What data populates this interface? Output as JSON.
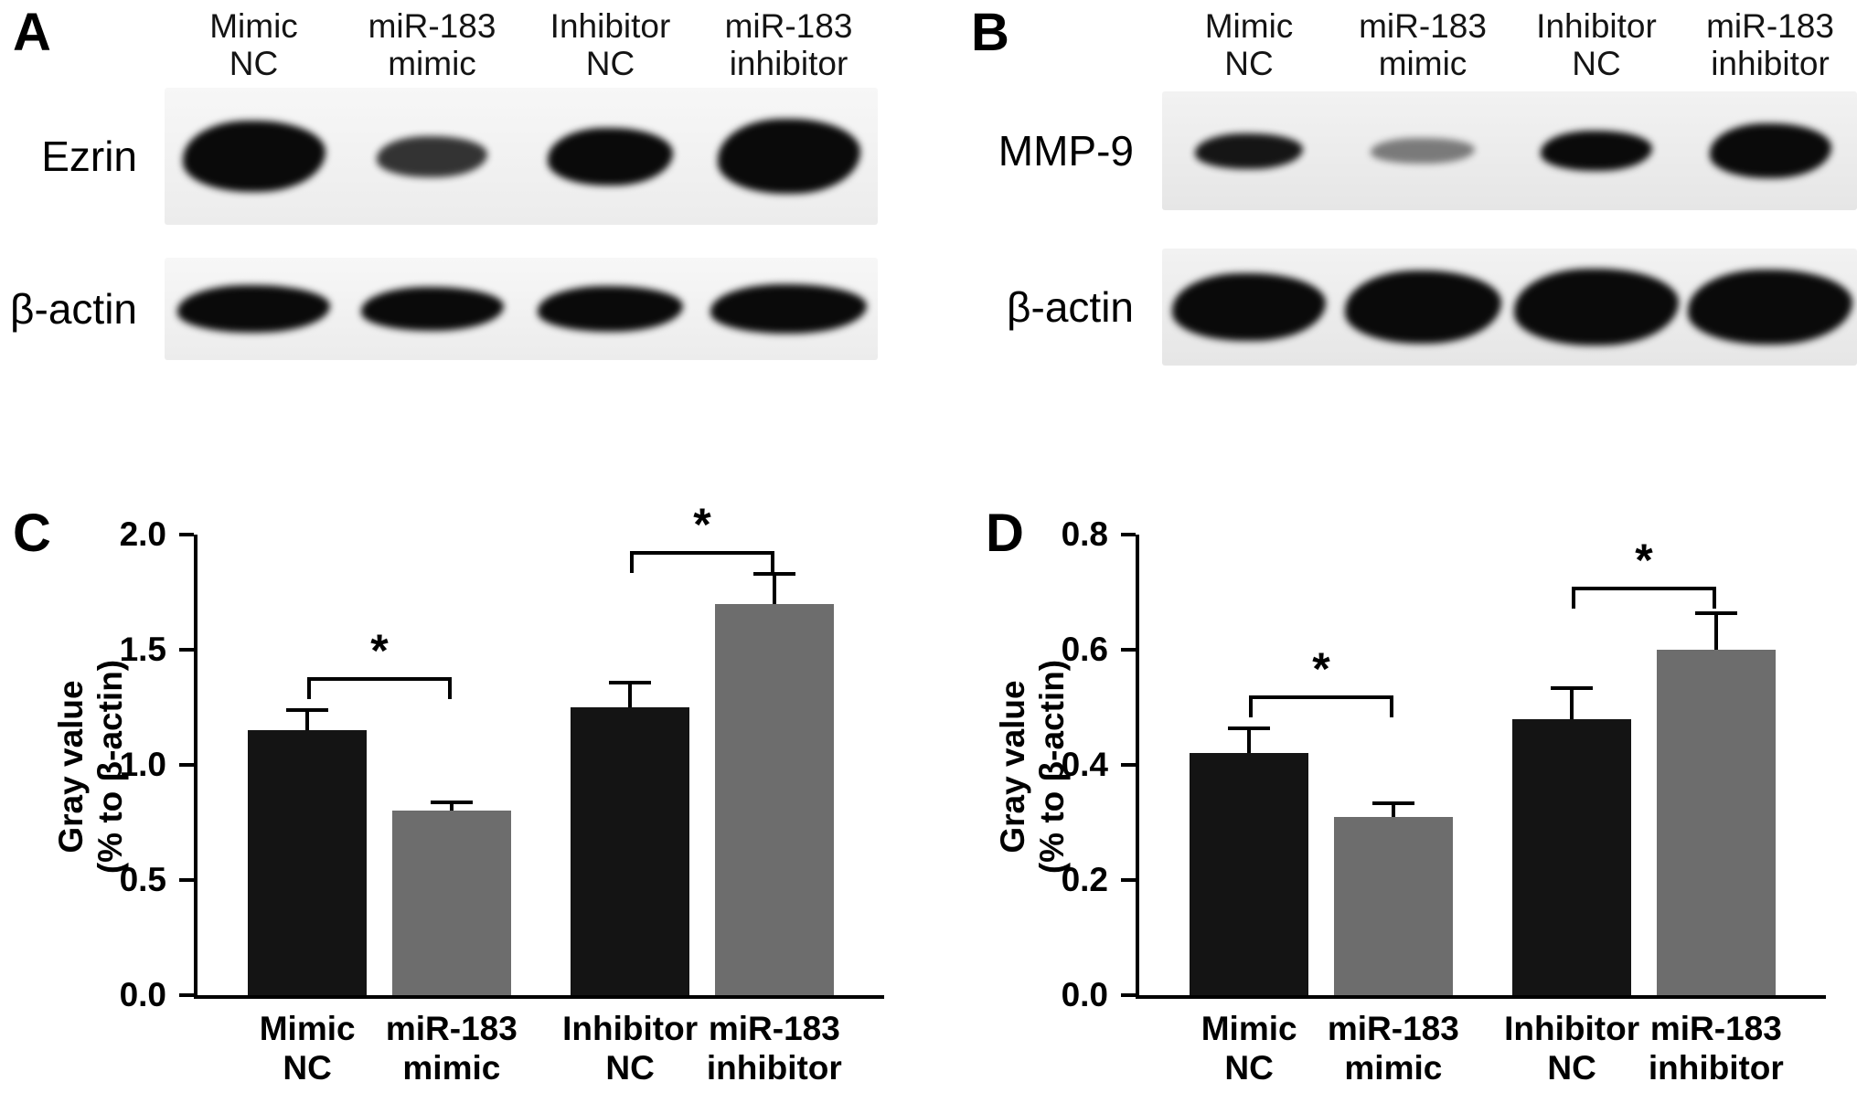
{
  "figure": {
    "background": "#ffffff",
    "text_color": "#000000"
  },
  "blot_panels": [
    {
      "label": "A",
      "protein": "Ezrin",
      "control": "β-actin",
      "lanes": [
        "Mimic\nNC",
        "miR-183\nmimic",
        "Inhibitor\nNC",
        "miR-183\ninhibitor"
      ],
      "protein_bands": [
        {
          "width": 0.8,
          "height": 0.52,
          "opacity": 1
        },
        {
          "width": 0.62,
          "height": 0.3,
          "opacity": 0.82
        },
        {
          "width": 0.7,
          "height": 0.42,
          "opacity": 1
        },
        {
          "width": 0.8,
          "height": 0.55,
          "opacity": 1
        }
      ],
      "control_bands": [
        {
          "width": 0.86,
          "height": 0.46,
          "opacity": 1
        },
        {
          "width": 0.8,
          "height": 0.42,
          "opacity": 1
        },
        {
          "width": 0.82,
          "height": 0.44,
          "opacity": 1
        },
        {
          "width": 0.88,
          "height": 0.48,
          "opacity": 1
        }
      ]
    },
    {
      "label": "B",
      "protein": "MMP-9",
      "control": "β-actin",
      "lanes": [
        "Mimic\nNC",
        "miR-183\nmimic",
        "Inhibitor\nNC",
        "miR-183\ninhibitor"
      ],
      "protein_bands": [
        {
          "width": 0.62,
          "height": 0.3,
          "opacity": 0.95
        },
        {
          "width": 0.6,
          "height": 0.22,
          "opacity": 0.5
        },
        {
          "width": 0.64,
          "height": 0.34,
          "opacity": 1
        },
        {
          "width": 0.7,
          "height": 0.46,
          "opacity": 1
        }
      ],
      "control_bands": [
        {
          "width": 0.88,
          "height": 0.58,
          "opacity": 1
        },
        {
          "width": 0.9,
          "height": 0.62,
          "opacity": 1
        },
        {
          "width": 0.95,
          "height": 0.66,
          "opacity": 1
        },
        {
          "width": 0.95,
          "height": 0.64,
          "opacity": 1
        }
      ]
    }
  ],
  "chart_data": [
    {
      "type": "bar",
      "panel_label": "C",
      "title": "",
      "categories": [
        "Mimic\nNC",
        "miR-183\nmimic",
        "Inhibitor\nNC",
        "miR-183\ninhibitor"
      ],
      "values": [
        1.15,
        0.8,
        1.25,
        1.7
      ],
      "errors": [
        0.08,
        0.03,
        0.1,
        0.12
      ],
      "bar_colors": [
        "#141414",
        "#6d6d6d",
        "#141414",
        "#6d6d6d"
      ],
      "xlabel": "",
      "ylabel": "Gray value\n(% to β-actin)",
      "ylim": [
        0,
        2.0
      ],
      "yticks": [
        "0.0",
        "0.5",
        "1.0",
        "1.5",
        "2.0"
      ],
      "grid": false,
      "legend": "none",
      "significance": [
        {
          "from": 0,
          "to": 1,
          "y": 1.38,
          "label": "*"
        },
        {
          "from": 2,
          "to": 3,
          "y": 1.93,
          "label": "*"
        }
      ]
    },
    {
      "type": "bar",
      "panel_label": "D",
      "title": "",
      "categories": [
        "Mimic\nNC",
        "miR-183\nmimic",
        "Inhibitor\nNC",
        "miR-183\ninhibitor"
      ],
      "values": [
        0.42,
        0.31,
        0.48,
        0.6
      ],
      "errors": [
        0.04,
        0.02,
        0.05,
        0.06
      ],
      "bar_colors": [
        "#141414",
        "#6d6d6d",
        "#141414",
        "#6d6d6d"
      ],
      "xlabel": "",
      "ylabel": "Gray value\n(% to β-actin)",
      "ylim": [
        0,
        0.8
      ],
      "yticks": [
        "0.0",
        "0.2",
        "0.4",
        "0.6",
        "0.8"
      ],
      "grid": false,
      "legend": "none",
      "significance": [
        {
          "from": 0,
          "to": 1,
          "y": 0.52,
          "label": "*"
        },
        {
          "from": 2,
          "to": 3,
          "y": 0.71,
          "label": "*"
        }
      ]
    }
  ]
}
